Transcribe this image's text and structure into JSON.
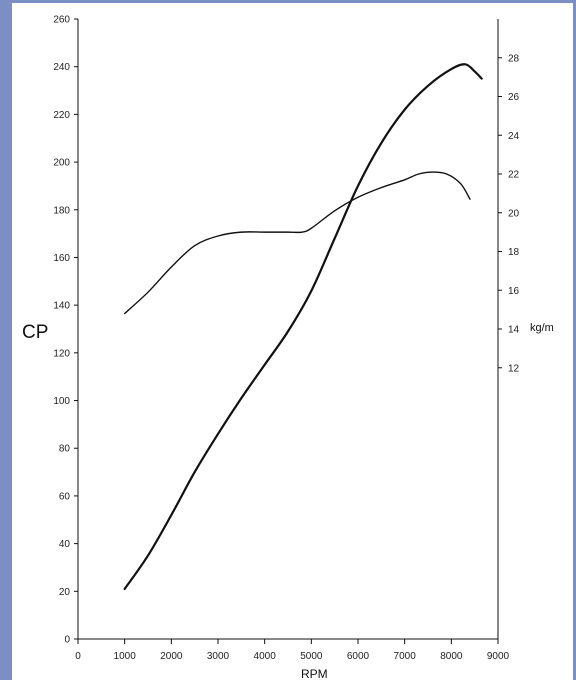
{
  "chart_data": {
    "type": "line",
    "xlabel": "RPM",
    "ylabel_left": "CP",
    "ylabel_right": "kg/m",
    "xlim": [
      0,
      9000
    ],
    "ylim_left": [
      0,
      260
    ],
    "ylim_right": [
      -2,
      30
    ],
    "x_ticks": [
      0,
      1000,
      2000,
      3000,
      4000,
      5000,
      6000,
      7000,
      8000,
      9000
    ],
    "x_tick_labels": [
      "0",
      "1000",
      "2000",
      "3000",
      "4000",
      "5000",
      "6000",
      "7000",
      "8000",
      "9000"
    ],
    "y_ticks_left": [
      0,
      20,
      40,
      60,
      80,
      100,
      120,
      140,
      160,
      180,
      200,
      220,
      240,
      260
    ],
    "y_tick_labels_left": [
      "0",
      "20",
      "40",
      "60",
      "80",
      "100",
      "120",
      "140",
      "160",
      "180",
      "200",
      "220",
      "240",
      "260"
    ],
    "y_ticks_right": [
      12,
      14,
      16,
      18,
      20,
      22,
      24,
      26,
      28
    ],
    "y_tick_labels_right": [
      "12",
      "14",
      "16",
      "18",
      "20",
      "22",
      "24",
      "26",
      "28"
    ],
    "grid": false,
    "series": [
      {
        "axis": "left",
        "stroke_width": 2.2,
        "x": [
          1000,
          1500,
          2000,
          2500,
          3000,
          3500,
          4000,
          4500,
          5000,
          5500,
          6000,
          6500,
          7000,
          7500,
          8000,
          8300,
          8500,
          8650
        ],
        "y": [
          21,
          35,
          52,
          70,
          86,
          101,
          115,
          129,
          146,
          168,
          190,
          208,
          222,
          232,
          239,
          241,
          238,
          235
        ]
      },
      {
        "axis": "right",
        "stroke_width": 1.4,
        "x": [
          1000,
          1500,
          2000,
          2500,
          3000,
          3500,
          4000,
          4500,
          4800,
          5000,
          5500,
          6000,
          6500,
          7000,
          7300,
          7600,
          7900,
          8200,
          8400
        ],
        "y": [
          14.8,
          15.9,
          17.2,
          18.3,
          18.8,
          19.0,
          19.0,
          19.0,
          19.0,
          19.2,
          20.1,
          20.8,
          21.3,
          21.7,
          22.0,
          22.1,
          22.0,
          21.5,
          20.7
        ]
      }
    ]
  }
}
